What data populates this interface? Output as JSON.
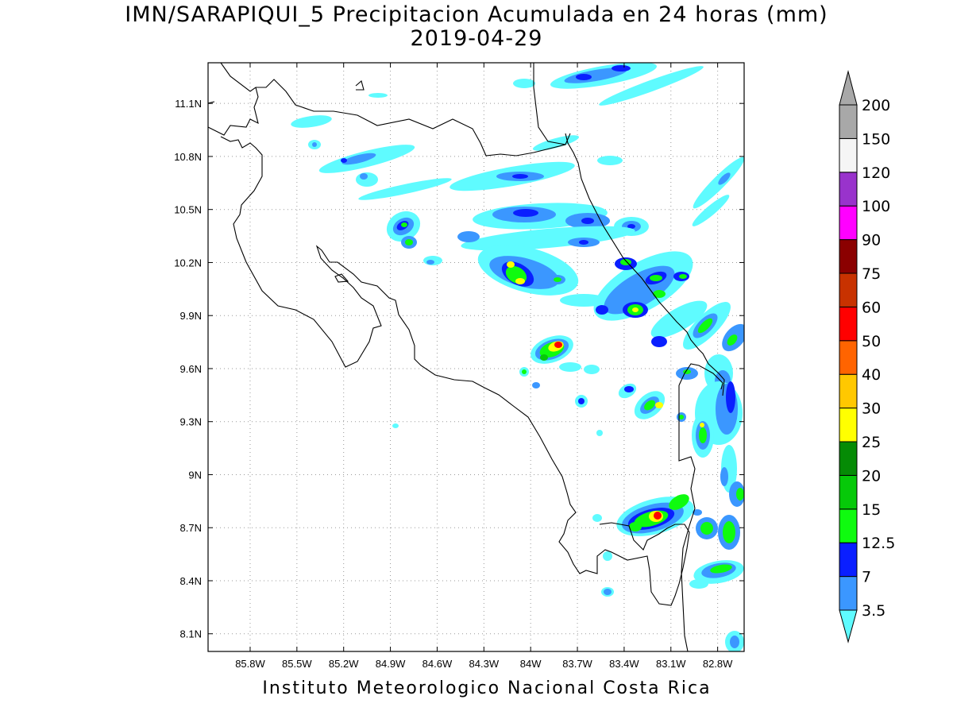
{
  "title": "IMN/SARAPIQUI_5 Precipitacion Acumulada en 24 horas (mm)",
  "date": "2019-04-29",
  "footer": "Instituto Meteorologico Nacional Costa Rica",
  "map": {
    "lon_range": [
      -86.07,
      -82.63
    ],
    "lat_range": [
      8.0,
      11.33
    ],
    "lon_ticks": [
      {
        "value": -85.8,
        "label": "85.8W"
      },
      {
        "value": -85.5,
        "label": "85.5W"
      },
      {
        "value": -85.2,
        "label": "85.2W"
      },
      {
        "value": -84.9,
        "label": "84.9W"
      },
      {
        "value": -84.6,
        "label": "84.6W"
      },
      {
        "value": -84.3,
        "label": "84.3W"
      },
      {
        "value": -84.0,
        "label": "84W"
      },
      {
        "value": -83.7,
        "label": "83.7W"
      },
      {
        "value": -83.4,
        "label": "83.4W"
      },
      {
        "value": -83.1,
        "label": "83.1W"
      },
      {
        "value": -82.8,
        "label": "82.8W"
      }
    ],
    "lat_ticks": [
      {
        "value": 11.1,
        "label": "11.1N"
      },
      {
        "value": 10.8,
        "label": "10.8N"
      },
      {
        "value": 10.5,
        "label": "10.5N"
      },
      {
        "value": 10.2,
        "label": "10.2N"
      },
      {
        "value": 9.9,
        "label": "9.9N"
      },
      {
        "value": 9.6,
        "label": "9.6N"
      },
      {
        "value": 9.3,
        "label": "9.3N"
      },
      {
        "value": 9.0,
        "label": "9N"
      },
      {
        "value": 8.7,
        "label": "8.7N"
      },
      {
        "value": 8.4,
        "label": "8.4N"
      },
      {
        "value": 8.1,
        "label": "8.1N"
      }
    ],
    "grid": true
  },
  "colorbar": {
    "levels": [
      "3.5",
      "7",
      "12.5",
      "15",
      "20",
      "25",
      "30",
      "40",
      "50",
      "60",
      "75",
      "90",
      "100",
      "120",
      "150",
      "200"
    ],
    "colors": [
      "#5ffbff",
      "#3b97ff",
      "#0a1fff",
      "#0ffb0f",
      "#06c909",
      "#058b05",
      "#ffff00",
      "#ffc800",
      "#ff6400",
      "#ff0000",
      "#c83200",
      "#8b0000",
      "#ff00ff",
      "#9933cc",
      "#f5f5f5",
      "#a8a8a8"
    ]
  },
  "precip_colors": {
    "c35": "#5ffbff",
    "c7": "#3b97ff",
    "c125": "#0a1fff",
    "c15": "#0ffb0f",
    "c20": "#06c909",
    "c30": "#ffff00",
    "c50": "#ff6400",
    "c60": "#ff0000"
  }
}
